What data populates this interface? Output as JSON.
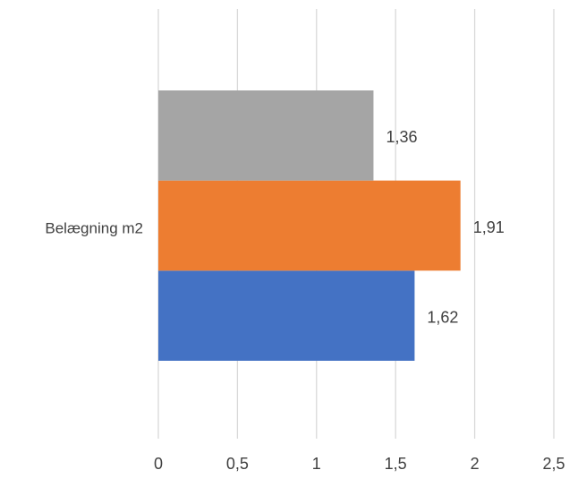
{
  "chart_data": {
    "type": "bar",
    "orientation": "horizontal",
    "categories": [
      "Belægning m2"
    ],
    "series": [
      {
        "color": "#4472c4",
        "values": [
          1.62
        ],
        "data_labels": [
          "1,62"
        ]
      },
      {
        "color": "#ed7d31",
        "values": [
          1.91
        ],
        "data_labels": [
          "1,91"
        ]
      },
      {
        "color": "#a5a5a5",
        "values": [
          1.36
        ],
        "data_labels": [
          "1,36"
        ]
      }
    ],
    "xlim": [
      0,
      2.5
    ],
    "x_ticks": [
      0,
      0.5,
      1,
      1.5,
      2,
      2.5
    ],
    "x_tick_labels": [
      "0",
      "0,5",
      "1",
      "1,5",
      "2",
      "2,5"
    ],
    "title": "",
    "xlabel": "",
    "ylabel": "",
    "grid": "vertical",
    "legend": "none"
  }
}
